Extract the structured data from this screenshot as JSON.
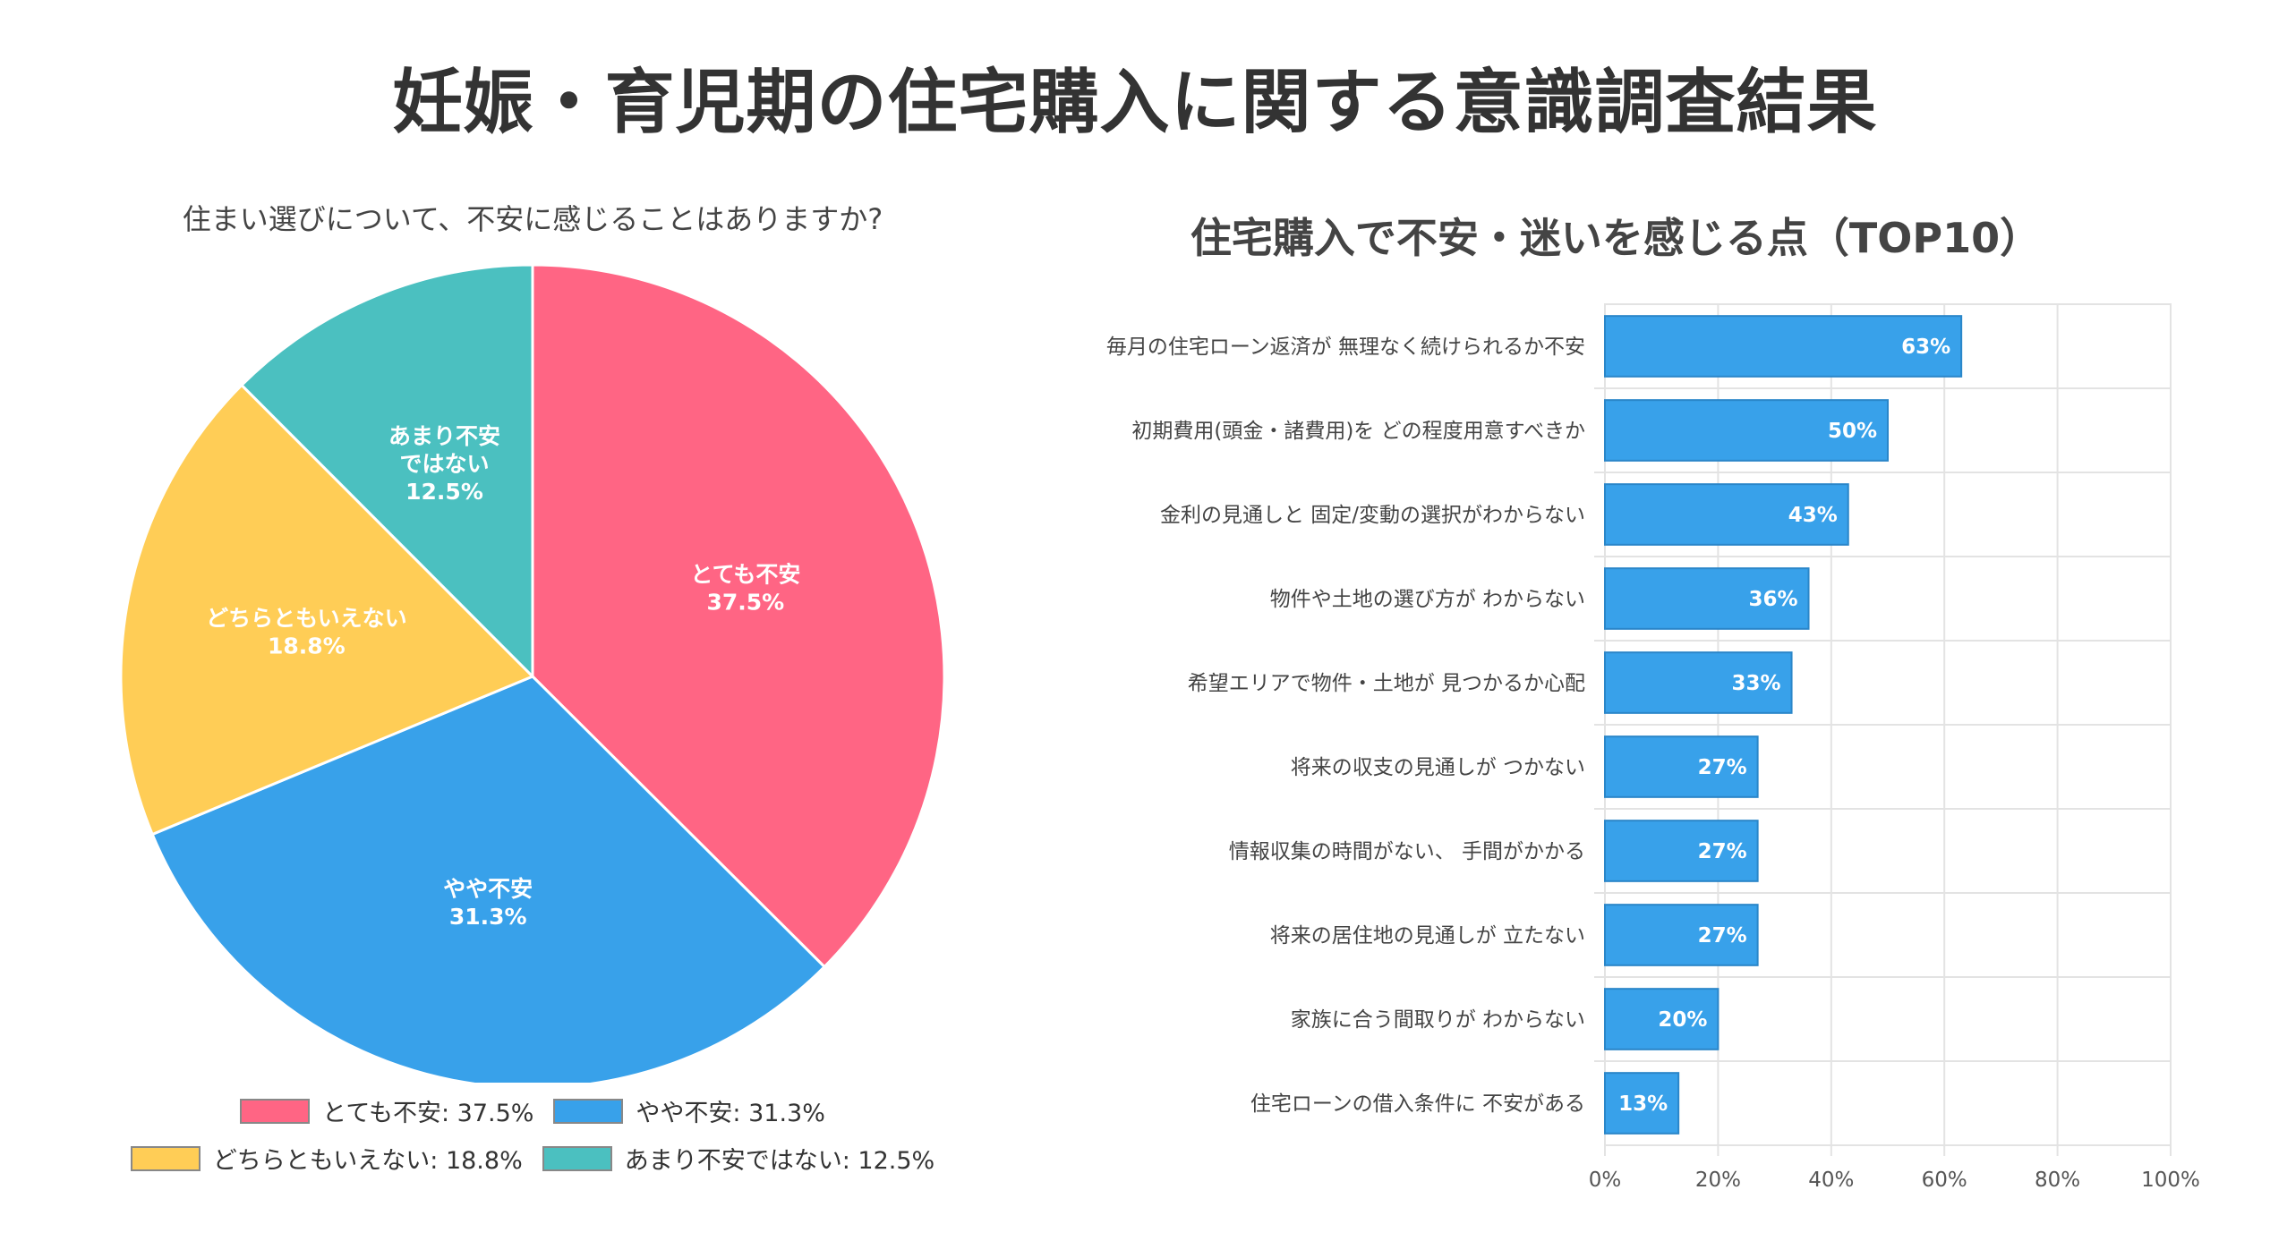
{
  "title": "妊娠・育児期の住宅購入に関する意識調査結果",
  "chart_data": [
    {
      "type": "pie",
      "title": "住まい選びについて、不安に感じることはありますか?",
      "slices": [
        {
          "name": "とても不安",
          "value": 37.5,
          "label": "37.5%",
          "color": "#FF6584"
        },
        {
          "name": "やや不安",
          "value": 31.3,
          "label": "31.3%",
          "color": "#38A1EA"
        },
        {
          "name": "どちらともいえない",
          "value": 18.8,
          "label": "18.8%",
          "color": "#FFCD56"
        },
        {
          "name": "あまり不安ではない",
          "value": 12.5,
          "label": "12.5%",
          "color": "#4BC0C0"
        }
      ],
      "slice_labels": [
        [
          "とても不安",
          "37.5%"
        ],
        [
          "やや不安",
          "31.3%"
        ],
        [
          "どちらともいえない",
          "18.8%"
        ],
        [
          "あまり不安",
          "ではない",
          "12.5%"
        ]
      ],
      "legend": [
        "とても不安: 37.5%",
        "やや不安: 31.3%",
        "どちらともいえない: 18.8%",
        "あまり不安ではない: 12.5%"
      ],
      "legend_position": "bottom"
    },
    {
      "type": "bar",
      "orientation": "horizontal",
      "title": "住宅購入で不安・迷いを感じる点（TOP10）",
      "categories": [
        "毎月の住宅ローン返済が 無理なく続けられるか不安",
        "初期費用(頭金・諸費用)を どの程度用意すべきか",
        "金利の見通しと 固定/変動の選択がわからない",
        "物件や土地の選び方が わからない",
        "希望エリアで物件・土地が 見つかるか心配",
        "将来の収支の見通しが つかない",
        "情報収集の時間がない、 手間がかかる",
        "将来の居住地の見通しが 立たない",
        "家族に合う間取りが わからない",
        "住宅ローンの借入条件に 不安がある"
      ],
      "values": [
        63,
        50,
        43,
        36,
        33,
        27,
        27,
        27,
        20,
        13
      ],
      "value_labels": [
        "63%",
        "50%",
        "43%",
        "36%",
        "33%",
        "27%",
        "27%",
        "27%",
        "20%",
        "13%"
      ],
      "xlim": [
        0,
        100
      ],
      "xticks": [
        "0%",
        "20%",
        "40%",
        "60%",
        "80%",
        "100%"
      ],
      "bar_color": "#38A1EA",
      "grid": true
    }
  ]
}
